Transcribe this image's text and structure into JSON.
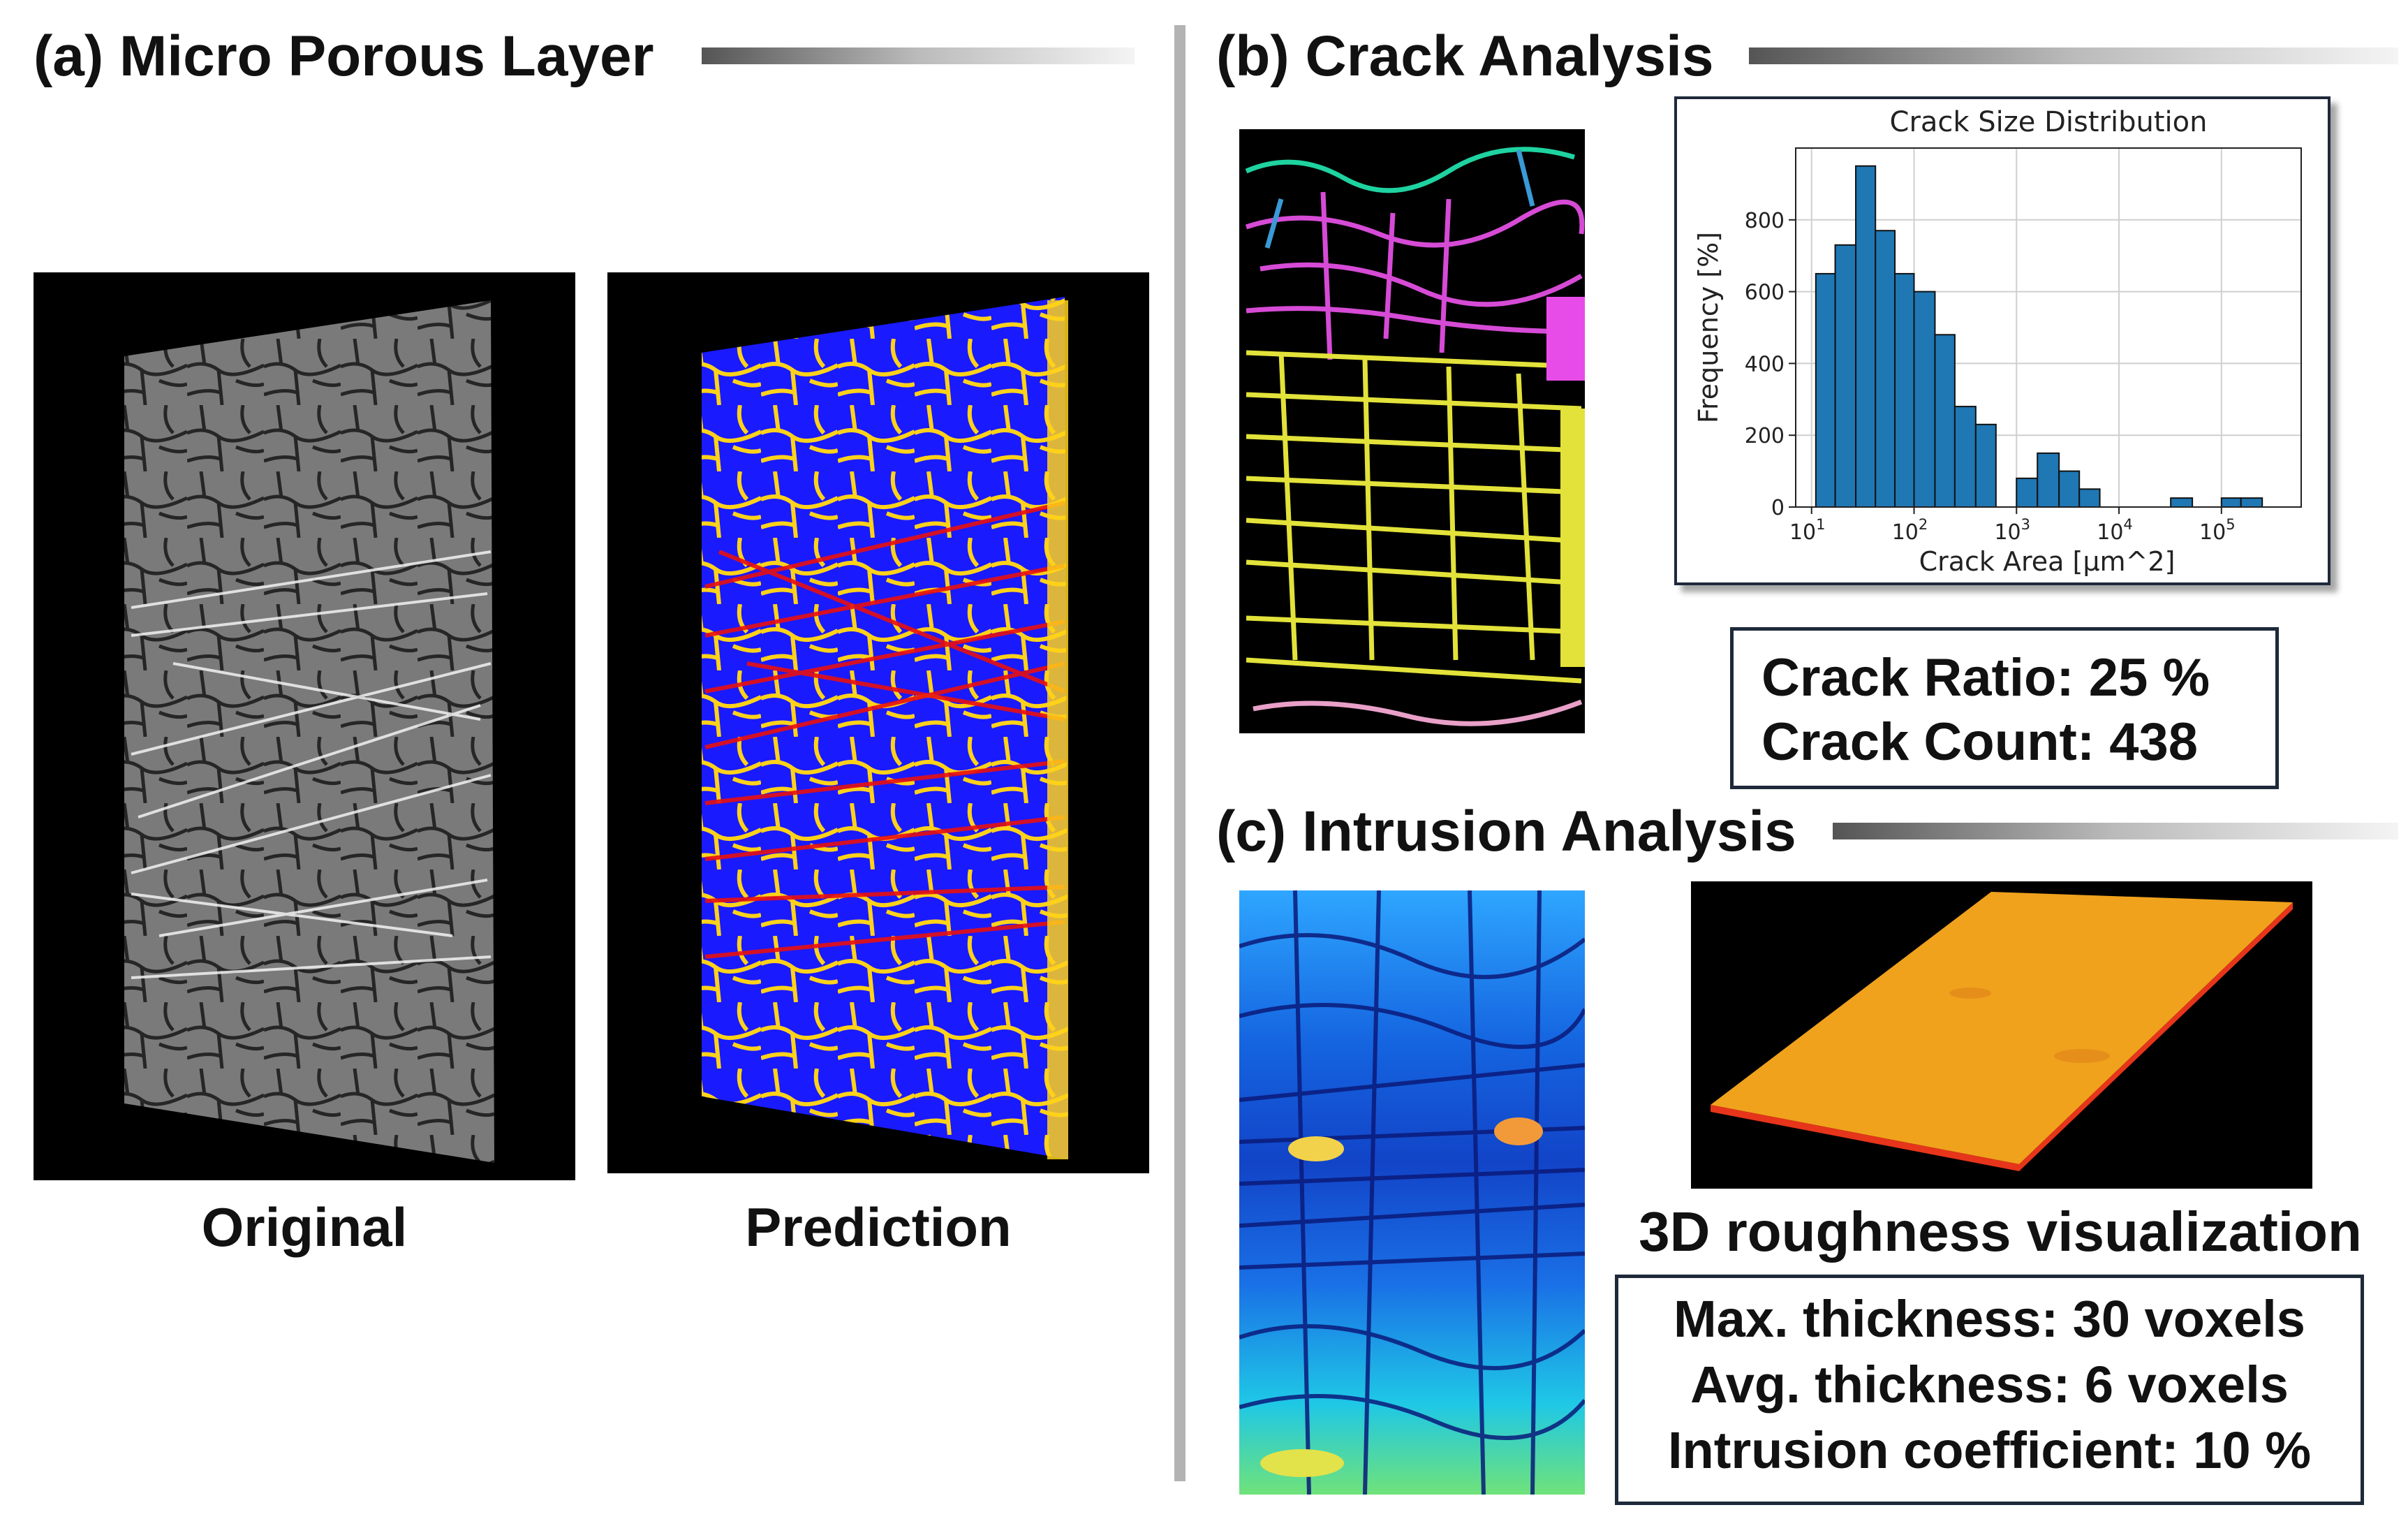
{
  "panel_a": {
    "title": "(a) Micro Porous Layer",
    "original_caption": "Original",
    "prediction_caption": "Prediction"
  },
  "panel_b": {
    "title": "(b) Crack Analysis",
    "stats": [
      "Crack Ratio: 25 %",
      "Crack Count: 438"
    ]
  },
  "panel_c": {
    "title": "(c) Intrusion Analysis",
    "render_caption": "3D roughness visualization",
    "stats": [
      "Max. thickness: 30 voxels",
      "Avg. thickness: 6 voxels",
      "Intrusion coefficient: 10 %"
    ]
  },
  "colors": {
    "hist_bar": "#1f77b4",
    "prediction_bg": "#1a1aff",
    "crack_yellow": "#ffd21a",
    "fiber_red": "#e81010"
  },
  "chart_data": {
    "type": "bar",
    "title": "Crack Size Distribution",
    "xlabel": "Crack Area [μm^2]",
    "ylabel": "Frequency [%]",
    "xscale": "log",
    "xlim": [
      7,
      600000
    ],
    "ylim": [
      0,
      1000
    ],
    "yticks": [
      0,
      200,
      400,
      600,
      800
    ],
    "xticks": [
      {
        "value": 10,
        "base": "10",
        "exp": "1"
      },
      {
        "value": 100,
        "base": "10",
        "exp": "2"
      },
      {
        "value": 1000,
        "base": "10",
        "exp": "3"
      },
      {
        "value": 10000,
        "base": "10",
        "exp": "4"
      },
      {
        "value": 100000,
        "base": "10",
        "exp": "5"
      }
    ],
    "grid": true,
    "bins": [
      {
        "from": 11,
        "to": 17,
        "value": 650
      },
      {
        "from": 17,
        "to": 27,
        "value": 730
      },
      {
        "from": 27,
        "to": 42,
        "value": 950
      },
      {
        "from": 42,
        "to": 65,
        "value": 770
      },
      {
        "from": 65,
        "to": 100,
        "value": 650
      },
      {
        "from": 100,
        "to": 160,
        "value": 600
      },
      {
        "from": 160,
        "to": 250,
        "value": 480
      },
      {
        "from": 250,
        "to": 400,
        "value": 280
      },
      {
        "from": 400,
        "to": 630,
        "value": 230
      },
      {
        "from": 630,
        "to": 1000,
        "value": 0
      },
      {
        "from": 1000,
        "to": 1600,
        "value": 80
      },
      {
        "from": 1600,
        "to": 2600,
        "value": 150
      },
      {
        "from": 2600,
        "to": 4100,
        "value": 100
      },
      {
        "from": 4100,
        "to": 6500,
        "value": 50
      },
      {
        "from": 32000,
        "to": 52000,
        "value": 25
      },
      {
        "from": 100000,
        "to": 155000,
        "value": 25
      },
      {
        "from": 155000,
        "to": 250000,
        "value": 25
      }
    ]
  }
}
